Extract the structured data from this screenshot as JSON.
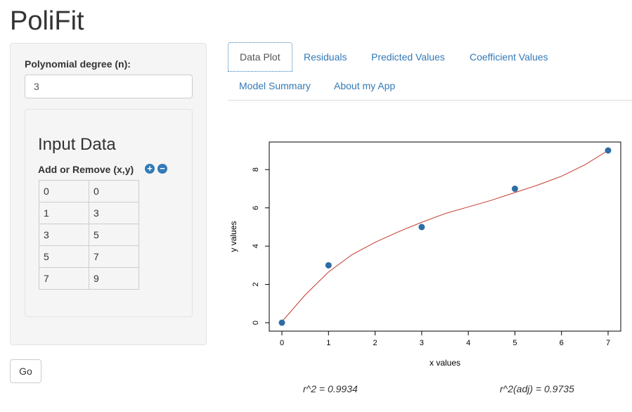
{
  "app_title": "PoliFit",
  "sidebar": {
    "degree_label": "Polynomial degree (n):",
    "degree_value": "3",
    "input_heading": "Input Data",
    "add_remove_label": "Add or Remove (x,y)",
    "add_icon": "plus-circle-icon",
    "remove_icon": "minus-circle-icon",
    "rows": [
      [
        "0",
        "0"
      ],
      [
        "1",
        "3"
      ],
      [
        "3",
        "5"
      ],
      [
        "5",
        "7"
      ],
      [
        "7",
        "9"
      ]
    ]
  },
  "go_label": "Go",
  "tabs": [
    {
      "label": "Data Plot",
      "active": true
    },
    {
      "label": "Residuals",
      "active": false
    },
    {
      "label": "Predicted Values",
      "active": false
    },
    {
      "label": "Coefficient Values",
      "active": false
    },
    {
      "label": "Model Summary",
      "active": false
    },
    {
      "label": "About my App",
      "active": false
    }
  ],
  "stats": {
    "r2": "r^2 = 0.9934",
    "r2adj": "r^2(adj) = 0.9735"
  },
  "colors": {
    "points": "#2e6da4",
    "fit_line": "#c0392b",
    "link": "#337ab7"
  },
  "chart_data": {
    "type": "scatter",
    "xlabel": "x values",
    "ylabel": "y values",
    "xlim": [
      0,
      7
    ],
    "ylim": [
      0,
      9
    ],
    "xticks": [
      0,
      1,
      2,
      3,
      4,
      5,
      6,
      7
    ],
    "yticks": [
      0,
      2,
      4,
      6,
      8
    ],
    "series": [
      {
        "values": [
          [
            0,
            0
          ],
          [
            1,
            3
          ],
          [
            3,
            5
          ],
          [
            5,
            7
          ],
          [
            7,
            9
          ]
        ]
      }
    ],
    "fit": {
      "type": "line",
      "points": [
        [
          0,
          0.05
        ],
        [
          0.5,
          1.45
        ],
        [
          1,
          2.65
        ],
        [
          1.5,
          3.55
        ],
        [
          2,
          4.2
        ],
        [
          2.5,
          4.75
        ],
        [
          3,
          5.25
        ],
        [
          3.5,
          5.7
        ],
        [
          4,
          6.05
        ],
        [
          4.5,
          6.4
        ],
        [
          5,
          6.8
        ],
        [
          5.5,
          7.2
        ],
        [
          6,
          7.65
        ],
        [
          6.5,
          8.25
        ],
        [
          7,
          9.0
        ]
      ]
    }
  }
}
